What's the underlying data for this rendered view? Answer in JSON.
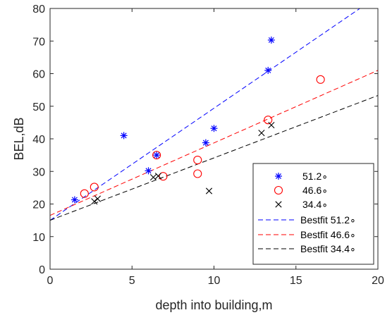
{
  "chart_data": {
    "type": "scatter",
    "title": "",
    "xlabel": "depth into building,m",
    "ylabel": "BEL,dB",
    "xlim": [
      0,
      20
    ],
    "ylim": [
      0,
      80
    ],
    "xticks": [
      "0",
      "5",
      "10",
      "15",
      "20"
    ],
    "yticks": [
      "0",
      "10",
      "20",
      "30",
      "40",
      "50",
      "60",
      "70",
      "80"
    ],
    "grid": false,
    "legend_position": "bottom-right",
    "series": [
      {
        "name": "51.2∘",
        "marker": "asterisk",
        "color": "#0000ff",
        "x": [
          1.5,
          4.5,
          6.0,
          6.5,
          9.5,
          10.0,
          13.3,
          13.5
        ],
        "y": [
          21.3,
          41.0,
          30.2,
          35.0,
          38.8,
          43.2,
          61.0,
          70.3
        ]
      },
      {
        "name": "46.6∘",
        "marker": "circle",
        "color": "#ff0000",
        "x": [
          2.1,
          2.7,
          6.5,
          6.9,
          9.0,
          9.0,
          13.3,
          16.5
        ],
        "y": [
          23.2,
          25.2,
          35.0,
          28.5,
          33.5,
          29.3,
          45.8,
          58.2
        ]
      },
      {
        "name": "34.4∘",
        "marker": "x",
        "color": "#000000",
        "x": [
          2.7,
          2.9,
          6.3,
          6.6,
          9.7,
          12.9,
          13.5
        ],
        "y": [
          20.8,
          21.6,
          28.2,
          28.6,
          24.0,
          41.8,
          44.2
        ]
      }
    ],
    "fit_lines": [
      {
        "name": "Bestfit 51.2∘",
        "color": "#0000ff",
        "x": [
          0,
          18.9
        ],
        "y": [
          15.0,
          80.0
        ]
      },
      {
        "name": "Bestfit 46.6∘",
        "color": "#ff0000",
        "x": [
          0,
          20
        ],
        "y": [
          16.5,
          61.0
        ]
      },
      {
        "name": "Bestfit 34.4∘",
        "color": "#000000",
        "x": [
          0,
          20
        ],
        "y": [
          15.0,
          53.3
        ]
      }
    ]
  }
}
